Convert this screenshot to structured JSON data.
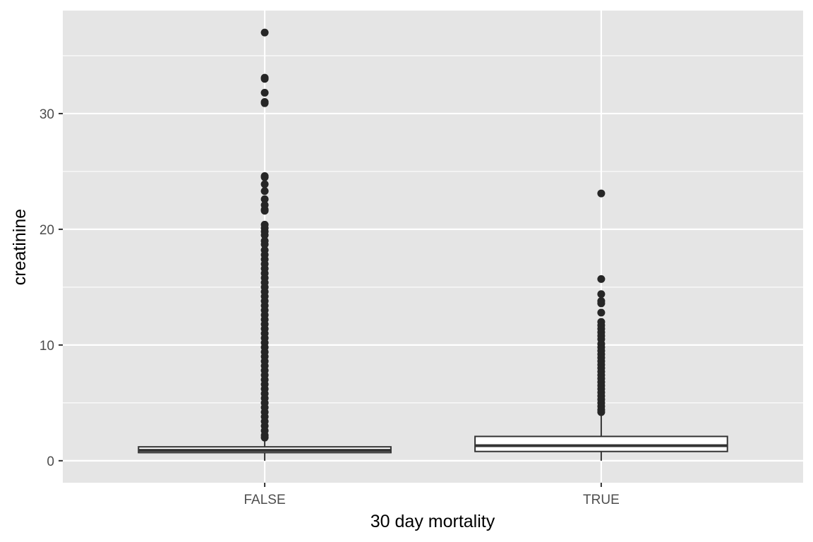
{
  "chart_data": {
    "type": "boxplot",
    "xlabel": "30 day mortality",
    "ylabel": "creatinine",
    "ylim": [
      -1.9,
      38.9
    ],
    "y_ticks": [
      0,
      10,
      20,
      30
    ],
    "y_minor_ticks": [
      5,
      15,
      25,
      35
    ],
    "grid": true,
    "categories": [
      "FALSE",
      "TRUE"
    ],
    "boxes": [
      {
        "category": "FALSE",
        "whisker_low": 0.0,
        "q1": 0.7,
        "median": 0.9,
        "q3": 1.2,
        "whisker_high": 1.9,
        "outliers": [
          37.0,
          33.1,
          33.0,
          31.8,
          31.0,
          30.9,
          24.6,
          24.5,
          23.9,
          23.3,
          22.6,
          22.1,
          21.7,
          21.6,
          20.4,
          20.1,
          19.8,
          19.5,
          19.0,
          18.7,
          18.2,
          17.8,
          17.4,
          17.0,
          16.6,
          16.2,
          15.8,
          15.4,
          15.0,
          14.6,
          14.2,
          13.8,
          13.4,
          13.0,
          12.6,
          12.2,
          11.8,
          11.4,
          11.0,
          10.6,
          10.2,
          9.8,
          9.4,
          9.0,
          8.6,
          8.2,
          7.8,
          7.4,
          7.0,
          6.6,
          6.2,
          5.8,
          5.4,
          5.0,
          4.6,
          4.2,
          3.8,
          3.4,
          3.0,
          2.6,
          2.2,
          2.0
        ]
      },
      {
        "category": "TRUE",
        "whisker_low": 0.0,
        "q1": 0.8,
        "median": 1.3,
        "q3": 2.1,
        "whisker_high": 4.0,
        "outliers": [
          23.1,
          15.7,
          14.4,
          13.8,
          13.6,
          12.8,
          12.0,
          11.7,
          11.4,
          11.1,
          10.8,
          10.5,
          10.1,
          9.8,
          9.5,
          9.2,
          8.9,
          8.6,
          8.3,
          8.0,
          7.7,
          7.4,
          7.1,
          6.8,
          6.5,
          6.2,
          5.9,
          5.6,
          5.3,
          5.0,
          4.7,
          4.4,
          4.2
        ]
      }
    ]
  }
}
